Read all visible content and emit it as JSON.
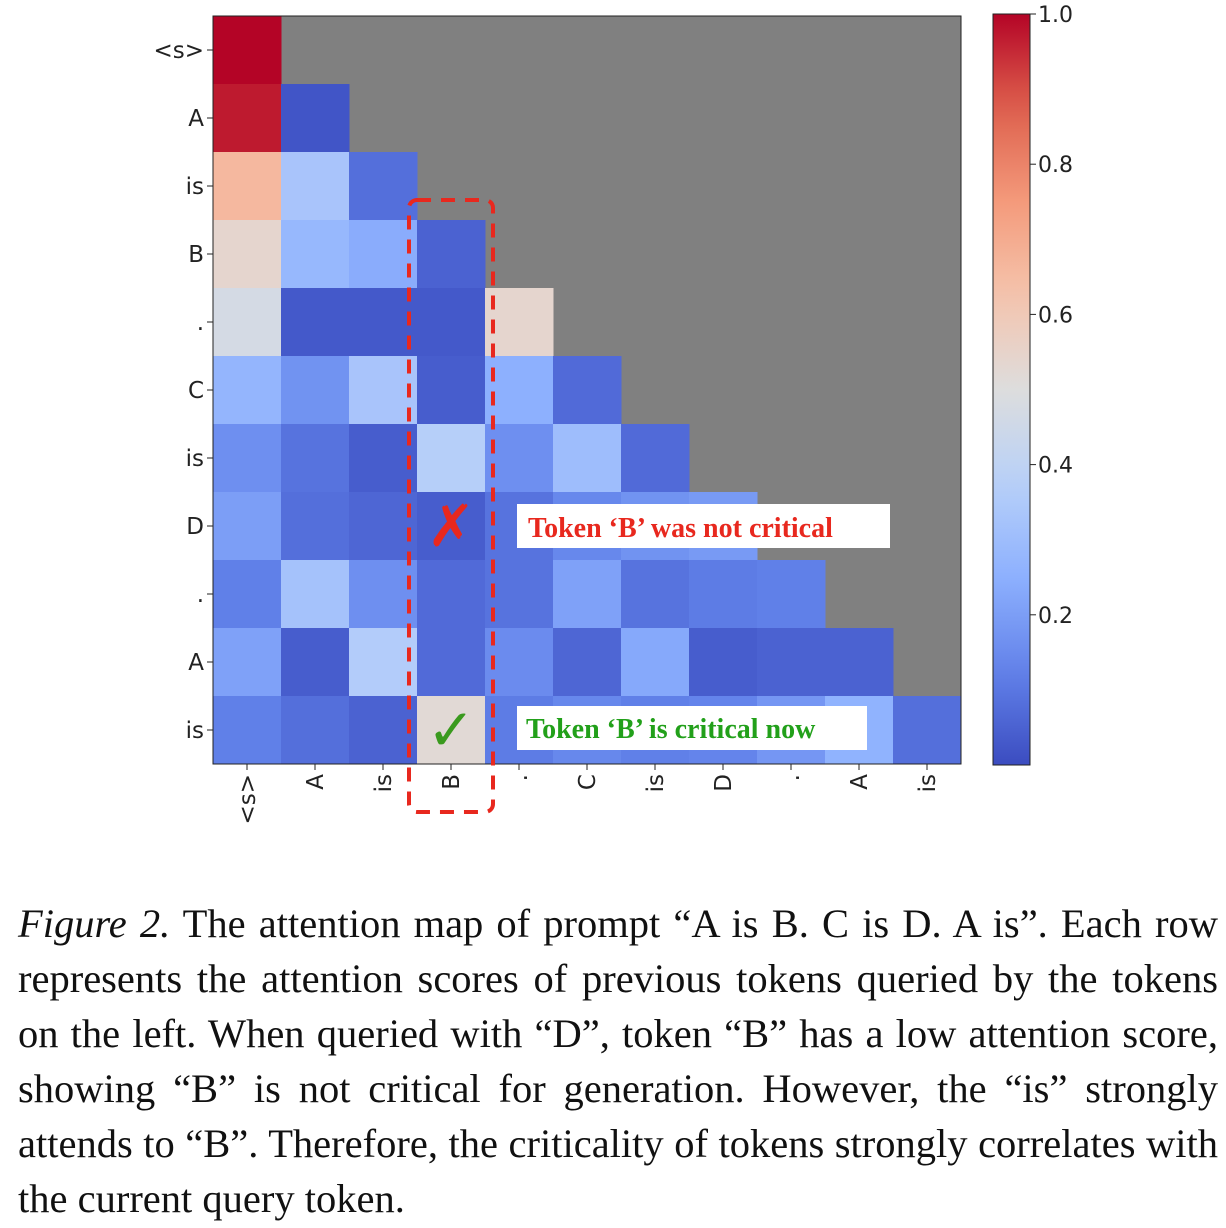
{
  "chart_data": {
    "type": "heatmap",
    "title": "",
    "row_labels": [
      "<s>",
      "A",
      "is",
      "B",
      ".",
      "C",
      "is",
      "D",
      ".",
      "A",
      "is"
    ],
    "col_labels": [
      "<s>",
      "A",
      "is",
      "B",
      ".",
      "C",
      "is",
      "D",
      ".",
      "A",
      "is"
    ],
    "masked": "upper-triangle",
    "values": [
      [
        1.0
      ],
      [
        0.97,
        0.02
      ],
      [
        0.66,
        0.33,
        0.08
      ],
      [
        0.54,
        0.28,
        0.24,
        0.05
      ],
      [
        0.47,
        0.03,
        0.03,
        0.03,
        0.54
      ],
      [
        0.27,
        0.17,
        0.33,
        0.04,
        0.25,
        0.07
      ],
      [
        0.16,
        0.09,
        0.04,
        0.37,
        0.16,
        0.3,
        0.07
      ],
      [
        0.2,
        0.08,
        0.06,
        0.04,
        0.09,
        0.14,
        0.17,
        0.19
      ],
      [
        0.12,
        0.32,
        0.16,
        0.07,
        0.09,
        0.21,
        0.09,
        0.11,
        0.12
      ],
      [
        0.21,
        0.04,
        0.36,
        0.07,
        0.15,
        0.06,
        0.23,
        0.04,
        0.05,
        0.05
      ],
      [
        0.12,
        0.08,
        0.05,
        0.52,
        0.11,
        0.14,
        0.12,
        0.13,
        0.18,
        0.26,
        0.08
      ]
    ],
    "colormap": "coolwarm",
    "vmin": 0.0,
    "vmax": 1.0,
    "colorbar_ticks": [
      "0.2",
      "0.4",
      "0.6",
      "0.8",
      "1.0"
    ],
    "colorbar_tick_values": [
      0.2,
      0.4,
      0.6,
      0.8,
      1.0
    ],
    "highlight_column": "B",
    "annotations": {
      "not_critical": "Token ‘B’ was not critical",
      "critical": "Token ‘B’ is critical now",
      "cross_symbol": "✗",
      "check_symbol": "✓"
    },
    "mask_color": "#808080",
    "highlight_color": "#e8281e",
    "check_color": "#3a9a1e",
    "text_green": "#22a01a"
  },
  "caption": {
    "label": "Figure 2.",
    "text": " The attention map of prompt “A is B. C is D. A is”. Each row represents the attention scores of previous tokens queried by the tokens on the left.  When queried with “D”, token “B” has a low attention score, showing “B” is not critical for generation. However, the “is” strongly attends to “B”. Therefore, the criticality of tokens strongly correlates with the current query token."
  }
}
